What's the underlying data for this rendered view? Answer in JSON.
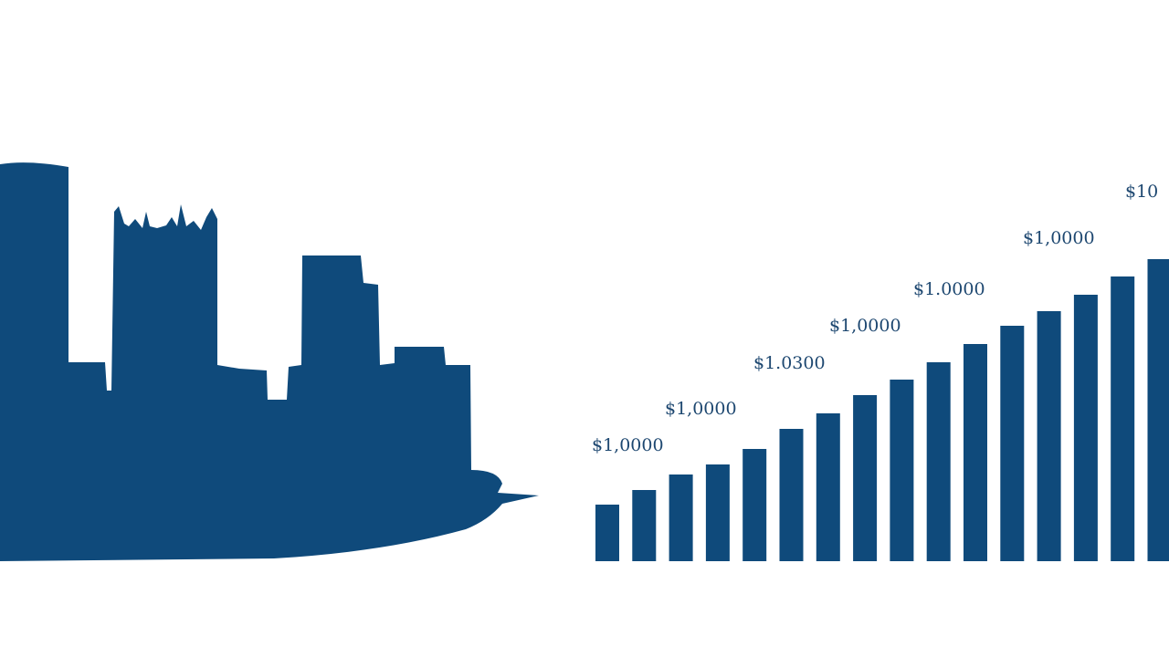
{
  "chart_data": {
    "type": "bar",
    "values": [
      62,
      78,
      95,
      106,
      123,
      145,
      162,
      182,
      199,
      218,
      238,
      258,
      274,
      292,
      312,
      331
    ],
    "color": "#0f4a7b",
    "ylim": [
      0,
      340
    ],
    "annotations": [
      "$1,0000",
      "$1,0000",
      "$1.0300",
      "$1,0000",
      "$1.0000",
      "$1,0000",
      "$10"
    ]
  }
}
